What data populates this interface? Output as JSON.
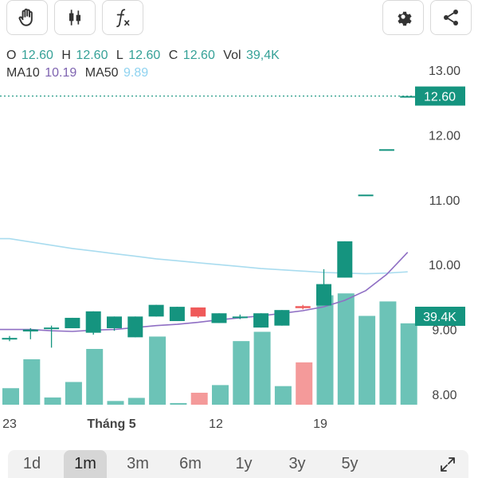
{
  "toolbar": {
    "left_icons": [
      "hand-icon",
      "candlestick-icon",
      "function-icon"
    ],
    "right_icons": [
      "gear-icon",
      "share-icon"
    ]
  },
  "ohlc": {
    "o_label": "O",
    "o_value": "12.60",
    "h_label": "H",
    "h_value": "12.60",
    "l_label": "L",
    "l_value": "12.60",
    "c_label": "C",
    "c_value": "12.60",
    "vol_label": "Vol",
    "vol_value": "39,4K",
    "ma10_label": "MA10",
    "ma10_value": "10.19",
    "ma50_label": "MA50",
    "ma50_value": "9.89"
  },
  "colors": {
    "up": "#15947f",
    "down": "#ef5a5a",
    "vol_up": "#6cc3b7",
    "vol_down": "#f49a9a",
    "ma10": "#8f6fc4",
    "ma50": "#a9dcef",
    "price_tag": "#15947f",
    "axis_text": "#444444"
  },
  "chart_data": {
    "type": "candlestick",
    "price_axis": {
      "ylim": [
        7.85,
        13.15
      ],
      "ticks": [
        "8.00",
        "9.00",
        "10.00",
        "11.00",
        "12.00",
        "13.00"
      ]
    },
    "x_ticks": [
      "23",
      "Tháng 5",
      "12",
      "19"
    ],
    "last_price": 12.6,
    "last_price_label": "12.60",
    "last_volume_label": "39.4K",
    "volume_max": 54000,
    "candles": [
      {
        "o": 8.85,
        "h": 8.9,
        "l": 8.82,
        "c": 8.87,
        "v": 8000
      },
      {
        "o": 8.97,
        "h": 9.02,
        "l": 8.85,
        "c": 9.0,
        "v": 22000
      },
      {
        "o": 9.03,
        "h": 9.06,
        "l": 8.72,
        "c": 9.03,
        "v": 3500
      },
      {
        "o": 9.02,
        "h": 9.18,
        "l": 9.02,
        "c": 9.18,
        "v": 11000
      },
      {
        "o": 8.95,
        "h": 9.28,
        "l": 8.92,
        "c": 9.28,
        "v": 27000
      },
      {
        "o": 9.02,
        "h": 9.2,
        "l": 8.98,
        "c": 9.2,
        "v": 1800
      },
      {
        "o": 8.88,
        "h": 9.2,
        "l": 8.88,
        "c": 9.2,
        "v": 3300
      },
      {
        "o": 9.2,
        "h": 9.38,
        "l": 9.2,
        "c": 9.38,
        "v": 33000
      },
      {
        "o": 9.13,
        "h": 9.35,
        "l": 9.13,
        "c": 9.35,
        "v": 800
      },
      {
        "o": 9.34,
        "h": 9.34,
        "l": 9.18,
        "c": 9.2,
        "v": 5800
      },
      {
        "o": 9.1,
        "h": 9.25,
        "l": 9.1,
        "c": 9.25,
        "v": 9500
      },
      {
        "o": 9.2,
        "h": 9.23,
        "l": 9.16,
        "c": 9.2,
        "v": 30800
      },
      {
        "o": 9.03,
        "h": 9.25,
        "l": 9.03,
        "c": 9.25,
        "v": 35300
      },
      {
        "o": 9.06,
        "h": 9.3,
        "l": 9.06,
        "c": 9.3,
        "v": 9000
      },
      {
        "o": 9.36,
        "h": 9.38,
        "l": 9.31,
        "c": 9.33,
        "v": 20500
      },
      {
        "o": 9.37,
        "h": 9.93,
        "l": 9.37,
        "c": 9.7,
        "v": 53000
      },
      {
        "o": 9.8,
        "h": 10.36,
        "l": 9.8,
        "c": 10.36,
        "v": 53900
      },
      {
        "o": 11.08,
        "h": 11.08,
        "l": 11.08,
        "c": 11.08,
        "v": 43000
      },
      {
        "o": 11.78,
        "h": 11.78,
        "l": 11.78,
        "c": 11.78,
        "v": 50000
      },
      {
        "o": 12.6,
        "h": 12.6,
        "l": 12.6,
        "c": 12.6,
        "v": 39400
      }
    ],
    "ma10": [
      9.0,
      9.0,
      8.98,
      8.97,
      8.99,
      9.0,
      9.03,
      9.06,
      9.08,
      9.11,
      9.15,
      9.18,
      9.21,
      9.25,
      9.29,
      9.35,
      9.45,
      9.6,
      9.85,
      10.19
    ],
    "ma50": [
      10.4,
      10.35,
      10.3,
      10.25,
      10.21,
      10.17,
      10.13,
      10.09,
      10.06,
      10.03,
      10.0,
      9.97,
      9.94,
      9.92,
      9.9,
      9.88,
      9.87,
      9.86,
      9.87,
      9.89
    ]
  },
  "ranges": {
    "items": [
      "1d",
      "1m",
      "3m",
      "6m",
      "1y",
      "3y",
      "5y"
    ],
    "active": "1m"
  }
}
